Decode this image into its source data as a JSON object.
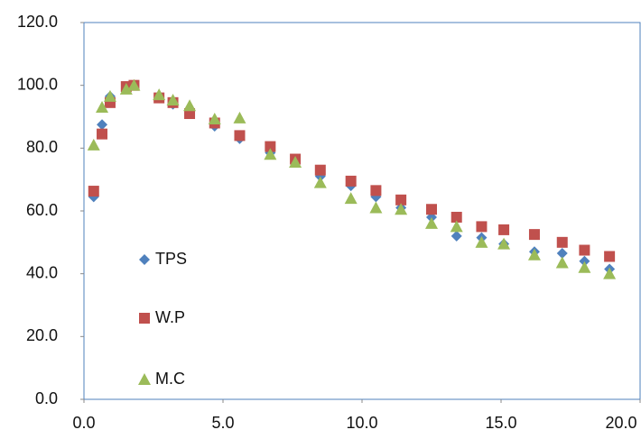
{
  "chart_data": {
    "type": "scatter",
    "x": [
      0.35,
      0.65,
      0.94,
      1.52,
      1.8,
      2.7,
      3.2,
      3.8,
      4.7,
      5.6,
      6.7,
      7.6,
      8.5,
      9.6,
      10.5,
      11.4,
      12.5,
      13.4,
      14.3,
      15.1,
      16.2,
      17.2,
      18.0,
      18.9
    ],
    "series": [
      {
        "name": "TPS",
        "color": "#4f81bd",
        "marker": "diamond",
        "values": [
          64.5,
          87.5,
          96.5,
          99,
          100,
          96,
          94,
          91,
          87,
          83,
          78.5,
          75.5,
          71,
          68,
          64.5,
          61,
          58,
          52,
          51.5,
          49.5,
          47,
          46.5,
          44,
          41.5
        ]
      },
      {
        "name": "W.P",
        "color": "#c0504d",
        "marker": "square",
        "values": [
          66.3,
          84.5,
          94.5,
          99.6,
          100,
          96,
          94.5,
          91,
          88,
          84,
          80.5,
          76.5,
          73,
          69.5,
          66.5,
          63.5,
          60.5,
          58,
          55,
          54,
          52.5,
          50,
          47.5,
          45.5
        ]
      },
      {
        "name": "M.C",
        "color": "#9bbb59",
        "marker": "triangle",
        "values": [
          81,
          93,
          96.5,
          98.8,
          100,
          97,
          95.3,
          93.5,
          89.3,
          89.6,
          78,
          75.5,
          69,
          64,
          61,
          60.5,
          56,
          55,
          50,
          49.5,
          46,
          43.5,
          42,
          40
        ]
      }
    ],
    "xlim": [
      0,
      20
    ],
    "xticks": [
      {
        "value": 0,
        "label": "0.0"
      },
      {
        "value": 5,
        "label": "5.0"
      },
      {
        "value": 10,
        "label": "10.0"
      },
      {
        "value": 15,
        "label": "15.0"
      },
      {
        "value": 20,
        "label": "20.0"
      }
    ],
    "ylim": [
      0,
      120
    ],
    "yticks": [
      {
        "value": 0,
        "label": "0.0"
      },
      {
        "value": 20,
        "label": "20.0"
      },
      {
        "value": 40,
        "label": "40.0"
      },
      {
        "value": 60,
        "label": "60.0"
      },
      {
        "value": 80,
        "label": "80.0"
      },
      {
        "value": 100,
        "label": "100.0"
      },
      {
        "value": 120,
        "label": "120.0"
      }
    ],
    "grid": false,
    "legend": "left"
  }
}
